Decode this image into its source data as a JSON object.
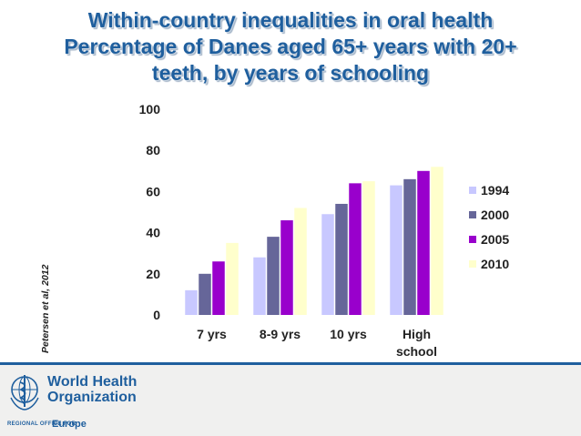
{
  "title": {
    "line1": "Within-country inequalities in oral health",
    "line2": "Percentage of Danes aged 65+ years with 20+",
    "line3": "teeth, by years of schooling"
  },
  "citation": "Petersen et al, 2012",
  "chart_data": {
    "type": "bar",
    "title": "Percentage of Danes aged 65+ years with 20+ teeth, by years of schooling",
    "xlabel": "",
    "ylabel": "",
    "ylim": [
      0,
      100
    ],
    "yticks": [
      0,
      20,
      40,
      60,
      80,
      100
    ],
    "categories": [
      "7 yrs",
      "8-9 yrs",
      "10 yrs",
      "High school"
    ],
    "category_lines": [
      [
        "7 yrs"
      ],
      [
        "8-9 yrs"
      ],
      [
        "10 yrs"
      ],
      [
        "High",
        "school"
      ]
    ],
    "series": [
      {
        "name": "1994",
        "color": "#c8c8ff",
        "values": [
          12,
          28,
          49,
          63
        ]
      },
      {
        "name": "2000",
        "color": "#666699",
        "values": [
          20,
          38,
          54,
          66
        ]
      },
      {
        "name": "2005",
        "color": "#9900cc",
        "values": [
          26,
          46,
          64,
          70
        ]
      },
      {
        "name": "2010",
        "color": "#ffffcc",
        "values": [
          35,
          52,
          65,
          72
        ]
      }
    ],
    "legend_position": "right",
    "grid": false
  },
  "footer": {
    "org_line1": "World Health",
    "org_line2": "Organization",
    "region_label": "REGIONAL OFFICE FOR",
    "region_name": "Europe",
    "accent": "#1f5f9e",
    "logo_icon": "who-emblem-icon"
  }
}
